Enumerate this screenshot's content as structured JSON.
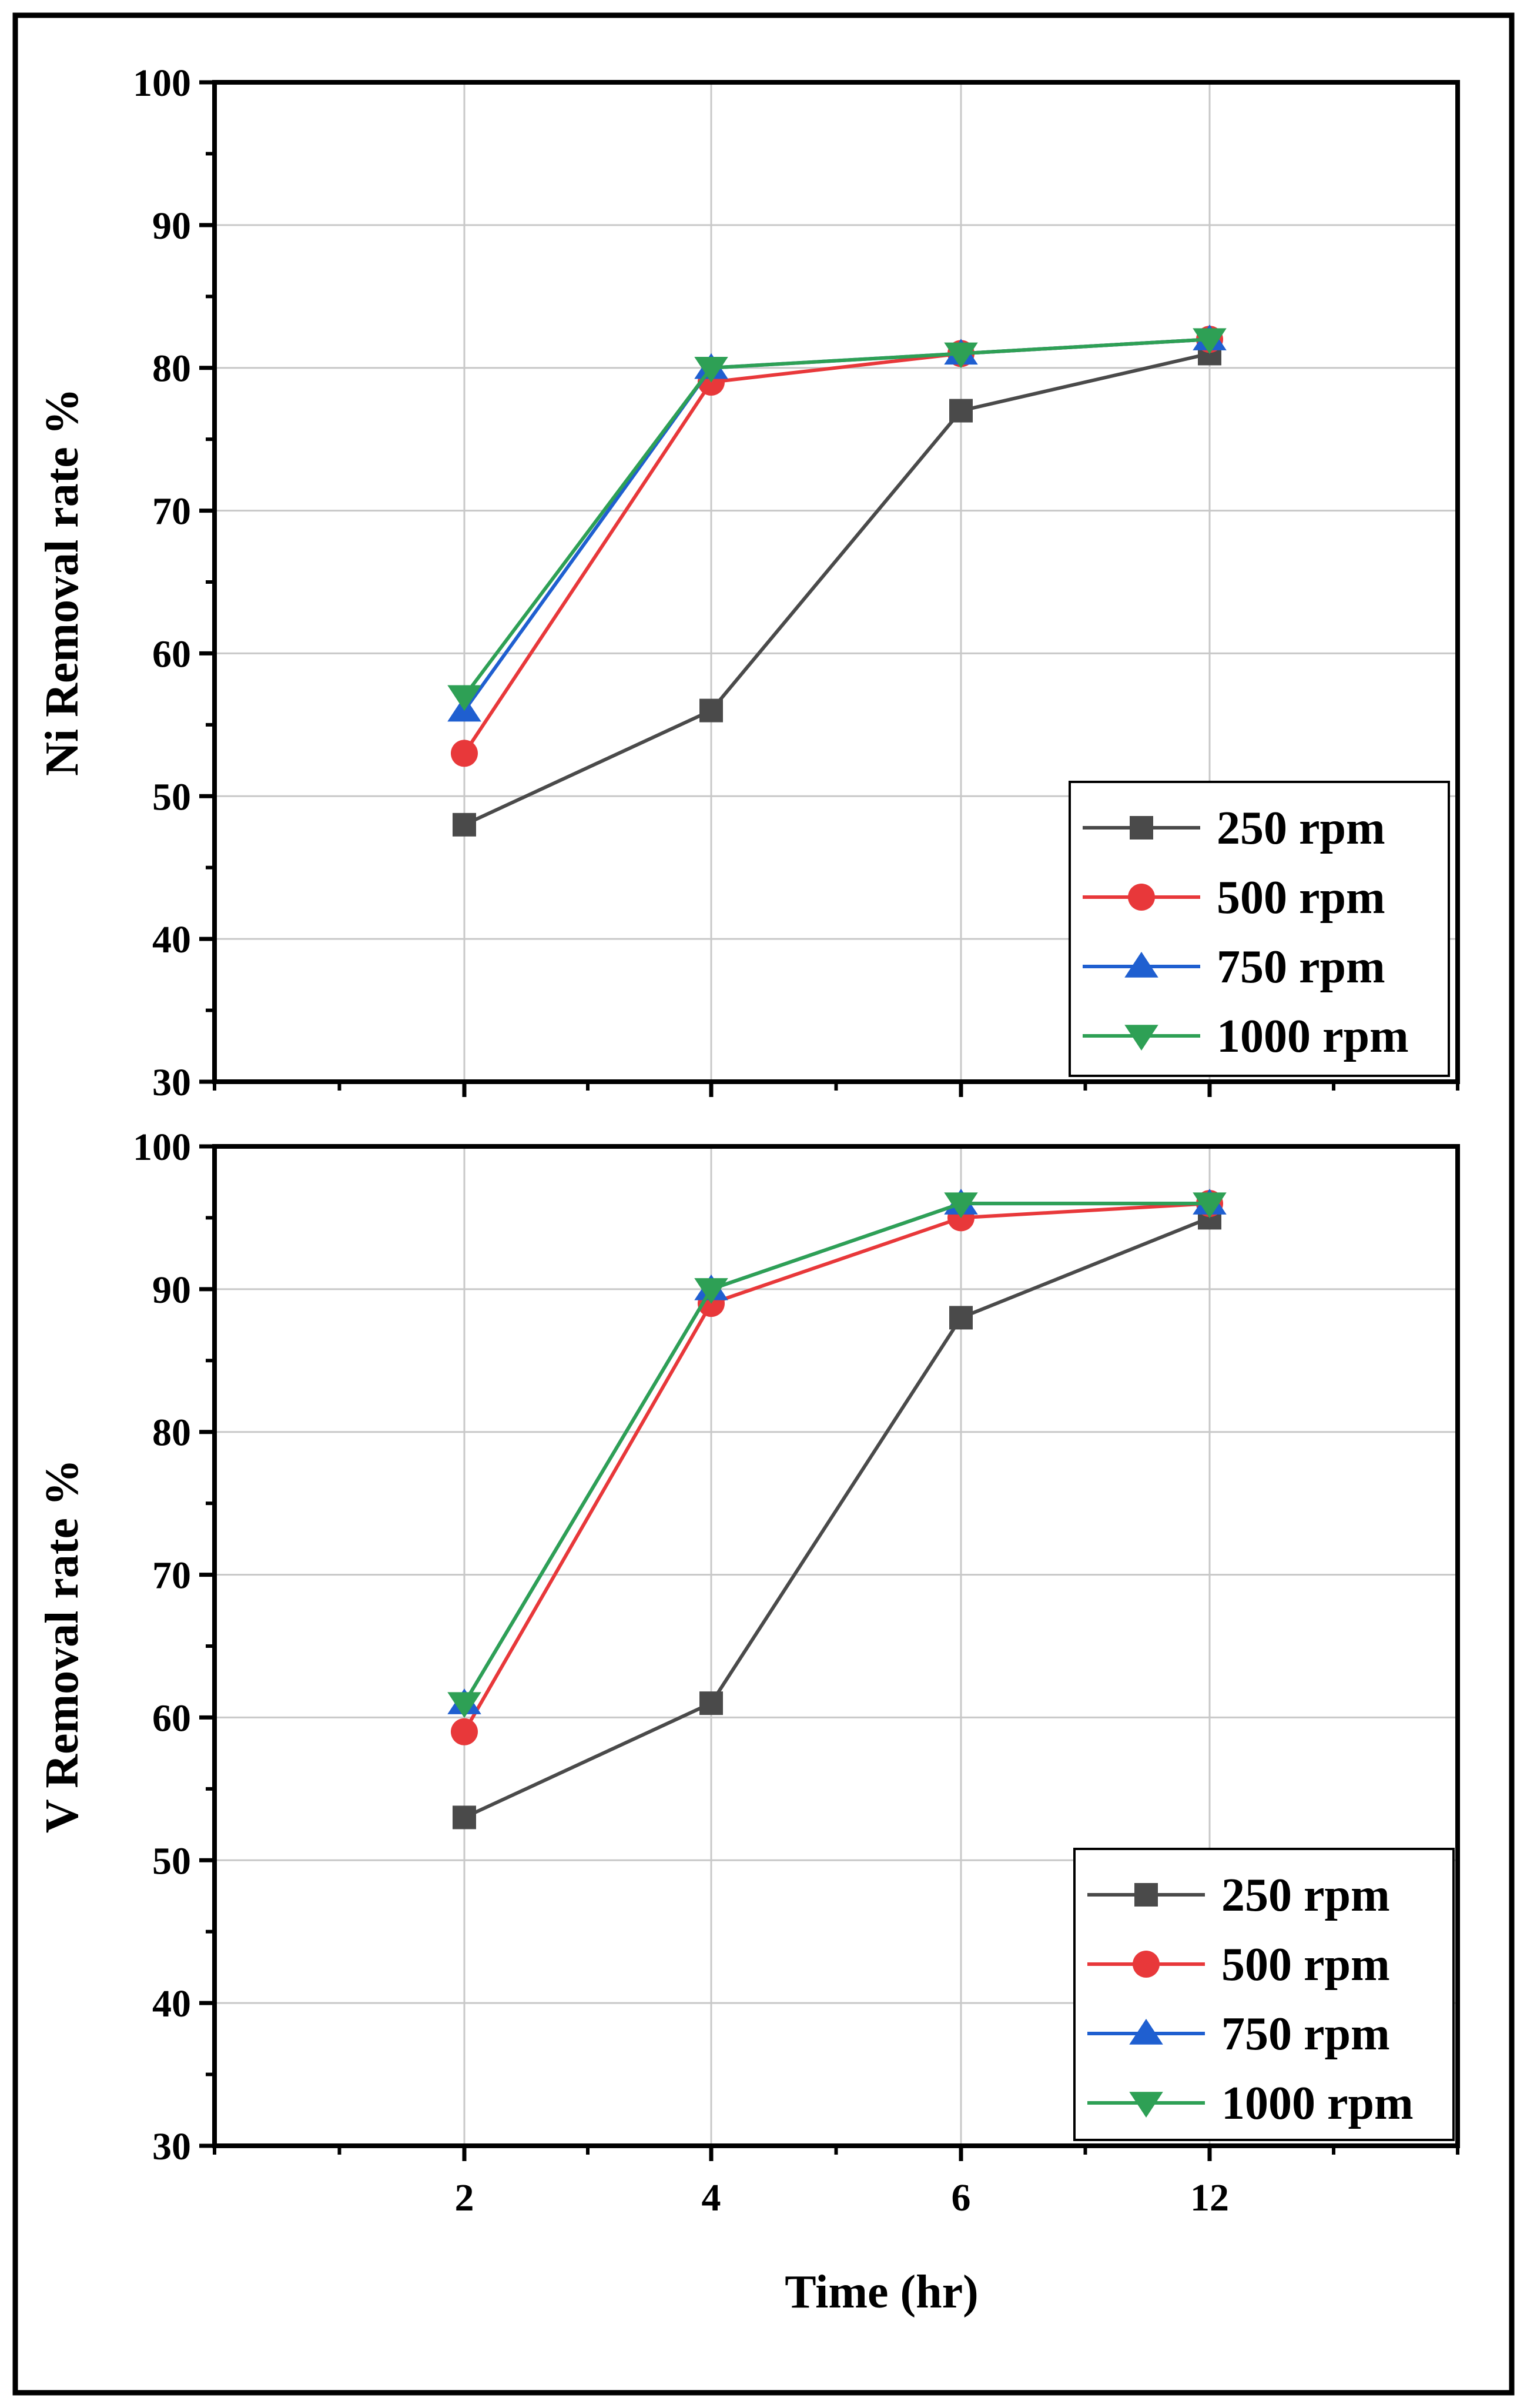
{
  "figure": {
    "xlabel": "Time (hr)"
  },
  "chart_data": [
    {
      "type": "line",
      "ylabel": "Ni Removal rate %",
      "categories": [
        "2",
        "4",
        "6",
        "12"
      ],
      "ylim": [
        30,
        100
      ],
      "yticks": [
        30,
        40,
        50,
        60,
        70,
        80,
        90,
        100
      ],
      "grid": true,
      "legend": "bottom-right",
      "series": [
        {
          "name": "250 rpm",
          "marker": "square",
          "color": "#4a4a4a",
          "values": [
            48,
            56,
            77,
            81
          ]
        },
        {
          "name": "500 rpm",
          "marker": "circle",
          "color": "#e8383a",
          "values": [
            53,
            79,
            81,
            82
          ]
        },
        {
          "name": "750 rpm",
          "marker": "triangle-up",
          "color": "#1f5fd0",
          "values": [
            56,
            80,
            81,
            82
          ]
        },
        {
          "name": "1000 rpm",
          "marker": "triangle-down",
          "color": "#2ea055",
          "values": [
            57,
            80,
            81,
            82
          ]
        }
      ]
    },
    {
      "type": "line",
      "ylabel": "V Removal rate %",
      "xlabel": "Time (hr)",
      "categories": [
        "2",
        "4",
        "6",
        "12"
      ],
      "ylim": [
        30,
        100
      ],
      "yticks": [
        30,
        40,
        50,
        60,
        70,
        80,
        90,
        100
      ],
      "grid": true,
      "legend": "bottom-right",
      "series": [
        {
          "name": "250 rpm",
          "marker": "square",
          "color": "#4a4a4a",
          "values": [
            53,
            61,
            88,
            95
          ]
        },
        {
          "name": "500 rpm",
          "marker": "circle",
          "color": "#e8383a",
          "values": [
            59,
            89,
            95,
            96
          ]
        },
        {
          "name": "750 rpm",
          "marker": "triangle-up",
          "color": "#1f5fd0",
          "values": [
            61,
            90,
            96,
            96
          ]
        },
        {
          "name": "1000 rpm",
          "marker": "triangle-down",
          "color": "#2ea055",
          "values": [
            61,
            90,
            96,
            96
          ]
        }
      ]
    }
  ]
}
